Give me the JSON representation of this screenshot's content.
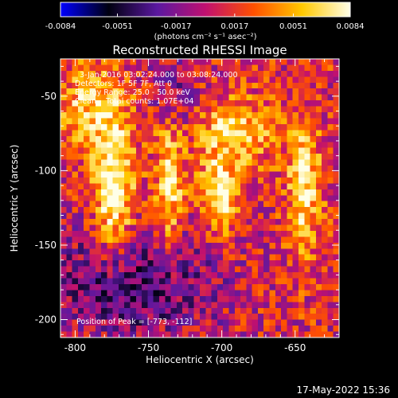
{
  "colorbar": {
    "tick_labels": [
      "-0.0084",
      "-0.0051",
      "-0.0017",
      "0.0017",
      "0.0051",
      "0.0084"
    ],
    "tick_values": [
      -0.0084,
      -0.0051,
      -0.0017,
      0.0017,
      0.0051,
      0.0084
    ],
    "range": [
      -0.0084,
      0.0084
    ],
    "units_label": "(photons cm⁻² s⁻¹ asec⁻²)",
    "colormap": [
      "#0000ff",
      "#000010",
      "#5a18a0",
      "#c01070",
      "#ff5000",
      "#ffc800",
      "#ffffe8"
    ]
  },
  "chart_data": {
    "type": "heatmap",
    "title": "Reconstructed RHESSI Image",
    "xlabel": "Heliocentric X (arcsec)",
    "ylabel": "Heliocentric Y (arcsec)",
    "xlim": [
      -810,
      -620
    ],
    "ylim": [
      -212,
      -25
    ],
    "x_ticks": [
      -800,
      -750,
      -700,
      -650
    ],
    "y_ticks": [
      -50,
      -100,
      -150,
      -200
    ],
    "x_tick_labels": [
      "-800",
      "-750",
      "-700",
      "-650"
    ],
    "y_tick_labels": [
      "-50",
      "-100",
      "-150",
      "-200"
    ],
    "grid_cell_arcsec": 4,
    "sources": [
      {
        "x": -773,
        "y": -112,
        "sx": 10,
        "sy": 32,
        "amp": 0.0084
      },
      {
        "x": -735,
        "y": -110,
        "sx": 7,
        "sy": 30,
        "amp": 0.0065
      },
      {
        "x": -700,
        "y": -118,
        "sx": 9,
        "sy": 18,
        "amp": 0.0072
      },
      {
        "x": -690,
        "y": -75,
        "sx": 20,
        "sy": 16,
        "amp": 0.0056
      },
      {
        "x": -642,
        "y": -112,
        "sx": 8,
        "sy": 30,
        "amp": 0.0066
      },
      {
        "x": -790,
        "y": -58,
        "sx": 16,
        "sy": 20,
        "amp": 0.005
      }
    ],
    "background_level": 0.001,
    "negative_regions": [
      {
        "x": -760,
        "y": -175,
        "sx": 40,
        "sy": 28,
        "amp": -0.0048
      },
      {
        "x": -730,
        "y": -50,
        "sx": 12,
        "sy": 20,
        "amp": -0.0026
      }
    ],
    "annotations": [
      "3-Jan-2016 03:02:24.000 to 03:08:24.000",
      "Detectors: 1F 5F 7F, Att 0",
      "Energy Range: 25.0 - 50.0 keV",
      "Clean    Total counts: 1.07E+04"
    ],
    "peak_label": "Position of Peak = [-773, -112]"
  },
  "timestamp": "17-May-2022 15:36"
}
